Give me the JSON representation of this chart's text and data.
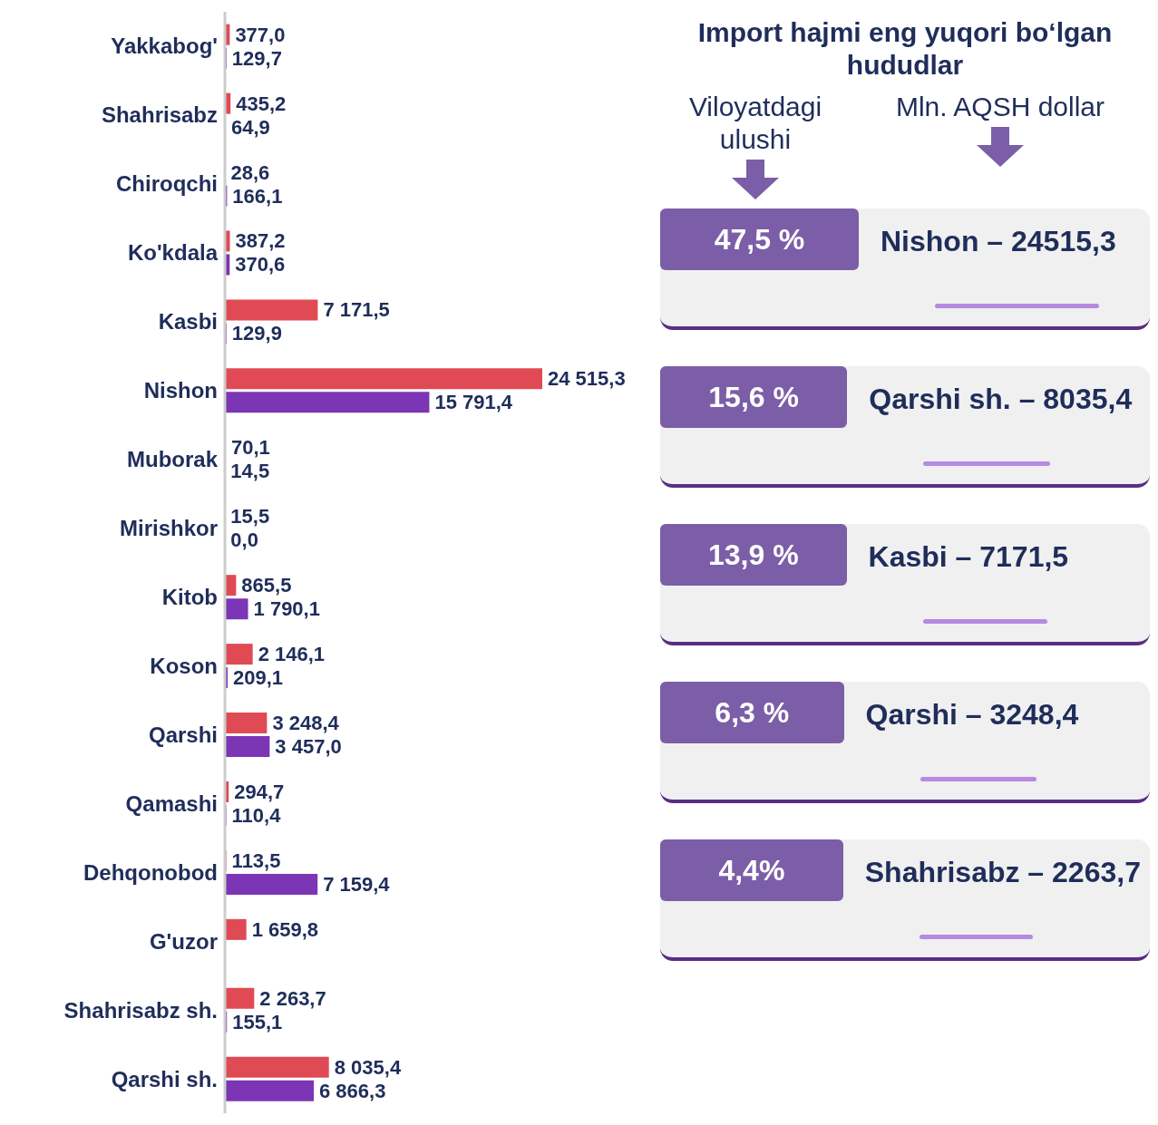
{
  "chart_data": [
    {
      "type": "bar",
      "orientation": "horizontal",
      "categories": [
        "Yakkabog'",
        "Shahrisabz",
        "Chiroqchi",
        "Ko'kdala",
        "Kasbi",
        "Nishon",
        "Muborak",
        "Mirishkor",
        "Kitob",
        "Koson",
        "Qarshi",
        "Qamashi",
        "Dehqonobod",
        "G'uzor",
        "Shahrisabz sh.",
        "Qarshi sh."
      ],
      "series": [
        {
          "color": "#e04a55",
          "values": [
            377.0,
            435.2,
            28.6,
            387.2,
            7171.5,
            24515.3,
            70.1,
            15.5,
            865.5,
            2146.1,
            3248.4,
            294.7,
            113.5,
            1659.8,
            2263.7,
            8035.4
          ],
          "value_labels": [
            "377,0",
            "435,2",
            "28,6",
            "387,2",
            "7 171,5",
            "24 515,3",
            "70,1",
            "15,5",
            "865,5",
            "2 146,1",
            "3 248,4",
            "294,7",
            "113,5",
            "1 659,8",
            "2 263,7",
            "8 035,4"
          ]
        },
        {
          "color": "#7b35b5",
          "values": [
            129.7,
            64.9,
            166.1,
            370.6,
            129.9,
            15791.4,
            14.5,
            0.0,
            1790.1,
            209.1,
            3457.0,
            110.4,
            7159.4,
            null,
            155.1,
            6866.3
          ],
          "value_labels": [
            "129,7",
            "64,9",
            "166,1",
            "370,6",
            "129,9",
            "15 791,4",
            "14,5",
            "0,0",
            "1 790,1",
            "209,1",
            "3 457,0",
            "110,4",
            "7 159,4",
            null,
            "155,1",
            "6 866,3"
          ]
        }
      ],
      "legend": false,
      "grid": false
    },
    {
      "type": "other",
      "title": "Import hajmi eng yuqori bo‘lgan hududlar",
      "annotations": [
        "Viloyatdagi ulushi",
        "Mln.  AQSH dollar"
      ],
      "categories": [
        "Nishon –",
        "Qarshi sh. –",
        "Kasbi –",
        "Qarshi –",
        "Shahrisabz –"
      ],
      "series": [
        {
          "color": "#7b5ea7",
          "values": [
            47.5,
            15.6,
            13.9,
            6.3,
            4.4
          ],
          "value_labels": [
            "47,5 %",
            "15,6 %",
            "13,9 %",
            "6,3 %",
            "4,4%"
          ]
        },
        {
          "color": "#f0f0f0",
          "values": [
            24515.3,
            8035.4,
            7171.5,
            3248.4,
            2263.7
          ],
          "value_labels": [
            "24515,3",
            "8035,4",
            "7171,5",
            "3248,4",
            "2263,7"
          ]
        }
      ]
    }
  ]
}
